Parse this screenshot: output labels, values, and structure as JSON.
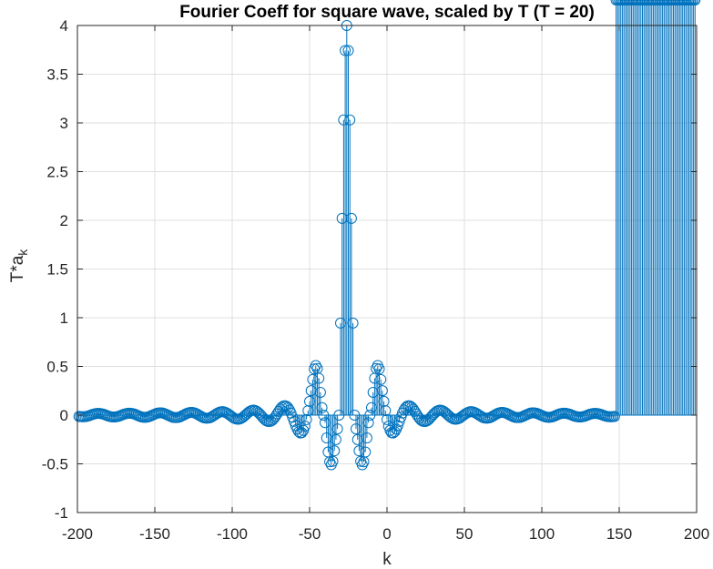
{
  "chart_data": {
    "type": "stem",
    "title": "Fourier Coeff for square wave, scaled by T (T = 20)",
    "xlabel": "k",
    "ylabel_base": "T*a",
    "ylabel_sub": "k",
    "xlim": [
      -200,
      200
    ],
    "ylim": [
      -1,
      4
    ],
    "xticks": [
      -200,
      -150,
      -100,
      -50,
      0,
      50,
      100,
      150,
      200
    ],
    "xtick_labels": [
      "-200",
      "-150",
      "-100",
      "-50",
      "0",
      "50",
      "100",
      "150",
      "200"
    ],
    "yticks": [
      -1,
      -0.5,
      0,
      0.5,
      1,
      1.5,
      2,
      2.5,
      3,
      3.5,
      4
    ],
    "ytick_labels": [
      "-1",
      "-0.5",
      "0",
      "0.5",
      "1",
      "1.5",
      "2",
      "2.5",
      "3",
      "3.5",
      "4"
    ],
    "grid": true,
    "color": "#0072bd",
    "series": {
      "k": [
        -199,
        -198,
        -197,
        -196,
        -195,
        -194,
        -193,
        -192,
        -191,
        -190,
        -189,
        -188,
        -187,
        -186,
        -185,
        -184,
        -183,
        -182,
        -181,
        -180,
        -179,
        -178,
        -177,
        -176,
        -175,
        -174,
        -173,
        -172,
        -171,
        -170,
        -169,
        -168,
        -167,
        -166,
        -165,
        -164,
        -163,
        -162,
        -161,
        -160,
        -159,
        -158,
        -157,
        -156,
        -155,
        -154,
        -153,
        -152,
        -151,
        -150,
        -149,
        -148,
        -147,
        -146,
        -145,
        -144,
        -143,
        -142,
        -141,
        -140,
        -139,
        -138,
        -137,
        -136,
        -135,
        -134,
        -133,
        -132,
        -131,
        -130,
        -129,
        -128,
        -127,
        -126,
        -125,
        -124,
        -123,
        -122,
        -121,
        -120,
        -119,
        -118,
        -117,
        -116,
        -115,
        -114,
        -113,
        -112,
        -111,
        -110,
        -109,
        -108,
        -107,
        -106,
        -105,
        -104,
        -103,
        -102,
        -101,
        -100,
        -99,
        -98,
        -97,
        -96,
        -95,
        -94,
        -93,
        -92,
        -91,
        -90,
        -89,
        -88,
        -87,
        -86,
        -85,
        -84,
        -83,
        -82,
        -81,
        -80,
        -79,
        -78,
        -77,
        -76,
        -75,
        -74,
        -73,
        -72,
        -71,
        -70,
        -69,
        -68,
        -67,
        -66,
        -65,
        -64,
        -63,
        -62,
        -61,
        -60,
        -59,
        -58,
        -57,
        -56,
        -55,
        -54,
        -53,
        -52,
        -51,
        -50,
        -49,
        -48,
        -47,
        -46,
        -45,
        -44,
        -43,
        -42,
        -41,
        -40,
        -39,
        -38,
        -37,
        -36,
        -35,
        -34,
        -33,
        -32,
        -31,
        -30,
        -29,
        -28,
        -27,
        -26,
        -25,
        -24,
        -23,
        -22,
        -21,
        -20,
        -19,
        -18,
        -17,
        -16,
        -15,
        -14,
        -13,
        -12,
        -11,
        -10,
        -9,
        -8,
        -7,
        -6,
        -5,
        -4,
        -3,
        -2,
        -1,
        0,
        1,
        2,
        3,
        4,
        5,
        6,
        7,
        8,
        9,
        10,
        11,
        12,
        13,
        14,
        15,
        16,
        17,
        18,
        19,
        20,
        21,
        22,
        23,
        24,
        25,
        26,
        27,
        28,
        29,
        30,
        31,
        32,
        33,
        34,
        35,
        36,
        37,
        38,
        39,
        40,
        41,
        42,
        43,
        44,
        45,
        46,
        47,
        48,
        49,
        50,
        51,
        52,
        53,
        54,
        55,
        56,
        57,
        58,
        59,
        60,
        61,
        62,
        63,
        64,
        65,
        66,
        67,
        68,
        69,
        70,
        71,
        72,
        73,
        74,
        75,
        76,
        77,
        78,
        79,
        80,
        81,
        82,
        83,
        84,
        85,
        86,
        87,
        88,
        89,
        90,
        91,
        92,
        93,
        94,
        95,
        96,
        97,
        98,
        99,
        100,
        101,
        102,
        103,
        104,
        105,
        106,
        107,
        108,
        109,
        110,
        111,
        112,
        113,
        114,
        115,
        116,
        117,
        118,
        119,
        120,
        121,
        122,
        123,
        124,
        125,
        126,
        127,
        128,
        129,
        130,
        131,
        132,
        133,
        134,
        135,
        136,
        137,
        138,
        139,
        140,
        141,
        142,
        143,
        144,
        145,
        146,
        147,
        148,
        149,
        150,
        151,
        152,
        153,
        154,
        155,
        156,
        157,
        158,
        159,
        160,
        161,
        162,
        163,
        164,
        165,
        166,
        167,
        168,
        169,
        170,
        171,
        172,
        173,
        174,
        175,
        176,
        177,
        178,
        179,
        180,
        181,
        182,
        183,
        184,
        185,
        186,
        187,
        188,
        189,
        190,
        191,
        192,
        193,
        194,
        195,
        196,
        197,
        198,
        199
      ],
      "y": [
        -0.013,
        -0.015,
        -0.016,
        -0.016,
        -0.015,
        -0.013,
        -0.008,
        -0.003,
        0.003,
        0.008,
        0.013,
        0.016,
        0.018,
        0.018,
        0.016,
        0.013,
        0.009,
        0.003,
        -0.003,
        -0.009,
        -0.014,
        -0.017,
        -0.019,
        -0.019,
        -0.017,
        -0.014,
        -0.009,
        -0.003,
        0.003,
        0.009,
        0.014,
        0.018,
        0.02,
        0.02,
        0.018,
        0.015,
        0.01,
        0.004,
        -0.004,
        -0.01,
        -0.016,
        -0.02,
        -0.022,
        -0.022,
        -0.02,
        -0.016,
        -0.011,
        -0.004,
        0.004,
        0.011,
        0.017,
        0.021,
        0.023,
        0.023,
        0.022,
        0.017,
        0.011,
        0.004,
        -0.004,
        -0.012,
        -0.018,
        -0.023,
        -0.025,
        -0.025,
        -0.023,
        -0.019,
        -0.012,
        -0.004,
        0.004,
        0.013,
        0.02,
        0.025,
        0.028,
        0.028,
        0.026,
        0.021,
        0.014,
        0.005,
        -0.005,
        -0.014,
        -0.022,
        -0.028,
        -0.031,
        -0.031,
        -0.029,
        -0.023,
        -0.015,
        -0.005,
        0.005,
        0.016,
        0.025,
        0.031,
        0.035,
        0.036,
        0.033,
        0.026,
        0.017,
        0.006,
        -0.006,
        -0.018,
        -0.029,
        -0.036,
        -0.041,
        -0.042,
        -0.039,
        -0.031,
        -0.021,
        -0.007,
        0.007,
        0.022,
        0.035,
        0.044,
        0.05,
        0.051,
        0.047,
        0.038,
        0.025,
        0.009,
        -0.009,
        -0.027,
        -0.044,
        -0.057,
        -0.064,
        -0.066,
        -0.062,
        -0.051,
        -0.034,
        -0.013,
        0.013,
        0.038,
        0.062,
        0.081,
        0.093,
        0.097,
        0.092,
        0.077,
        0.053,
        0.021,
        -0.021,
        -0.064,
        -0.107,
        -0.144,
        -0.17,
        -0.183,
        -0.18,
        -0.157,
        -0.112,
        -0.046,
        0.046,
        0.141,
        0.251,
        0.366,
        0.474,
        0.509,
        0.479,
        0.379,
        0.234,
        0.077,
        0,
        -0.077,
        -0.234,
        -0.379,
        -0.479,
        -0.509,
        -0.474,
        -0.366,
        -0.251,
        -0.141,
        0,
        0.945,
        2.02,
        3.03,
        3.743,
        4,
        3.743,
        3.03,
        2.02,
        0.945,
        0,
        -0.141,
        -0.251,
        -0.366,
        -0.474,
        -0.509,
        -0.479,
        -0.379,
        -0.234,
        -0.077,
        0,
        0.077,
        0.234,
        0.379,
        0.479,
        0.509,
        0.474,
        0.366,
        0.251,
        0.141,
        0.046,
        -0.046,
        -0.112,
        -0.157,
        -0.18,
        -0.183,
        -0.17,
        -0.144,
        -0.107,
        -0.064,
        -0.021,
        0.021,
        0.053,
        0.077,
        0.092,
        0.097,
        0.093,
        0.081,
        0.062,
        0.038,
        0.013,
        -0.013,
        -0.034,
        -0.051,
        -0.062,
        -0.066,
        -0.064,
        -0.057,
        -0.044,
        -0.027,
        -0.009,
        0.009,
        0.025,
        0.038,
        0.047,
        0.051,
        0.05,
        0.044,
        0.035,
        0.022,
        0.007,
        -0.007,
        -0.021,
        -0.031,
        -0.039,
        -0.042,
        -0.041,
        -0.036,
        -0.029,
        -0.018,
        -0.006,
        0.006,
        0.017,
        0.026,
        0.033,
        0.036,
        0.035,
        0.031,
        0.025,
        0.016,
        0.005,
        -0.005,
        -0.015,
        -0.023,
        -0.029,
        -0.031,
        -0.031,
        -0.028,
        -0.022,
        -0.014,
        -0.005,
        0.005,
        0.014,
        0.021,
        0.026,
        0.028,
        0.028,
        0.025,
        0.02,
        0.013,
        0.004,
        -0.004,
        -0.012,
        -0.019,
        -0.023,
        -0.025,
        -0.025,
        -0.023,
        -0.018,
        -0.012,
        -0.004,
        0.004,
        0.011,
        0.017,
        0.022,
        0.023,
        0.023,
        0.021,
        0.017,
        0.011,
        0.004,
        -0.004,
        -0.011,
        -0.016,
        -0.02,
        -0.022,
        -0.022,
        -0.02,
        -0.016,
        -0.01,
        -0.004,
        0.004,
        0.01,
        0.015,
        0.018,
        0.02,
        0.02,
        0.018,
        0.014,
        0.009,
        0.003,
        -0.003,
        -0.009,
        -0.014,
        -0.017,
        -0.019,
        -0.019,
        -0.017,
        -0.014,
        -0.009,
        -0.003,
        0.003,
        0.009,
        0.013,
        0.016,
        0.018,
        0.018,
        0.016,
        0.013,
        0.008,
        0.003,
        -0.003,
        -0.008,
        -0.013,
        -0.015,
        -0.016,
        -0.016,
        -0.015,
        -0.013
      ]
    }
  }
}
